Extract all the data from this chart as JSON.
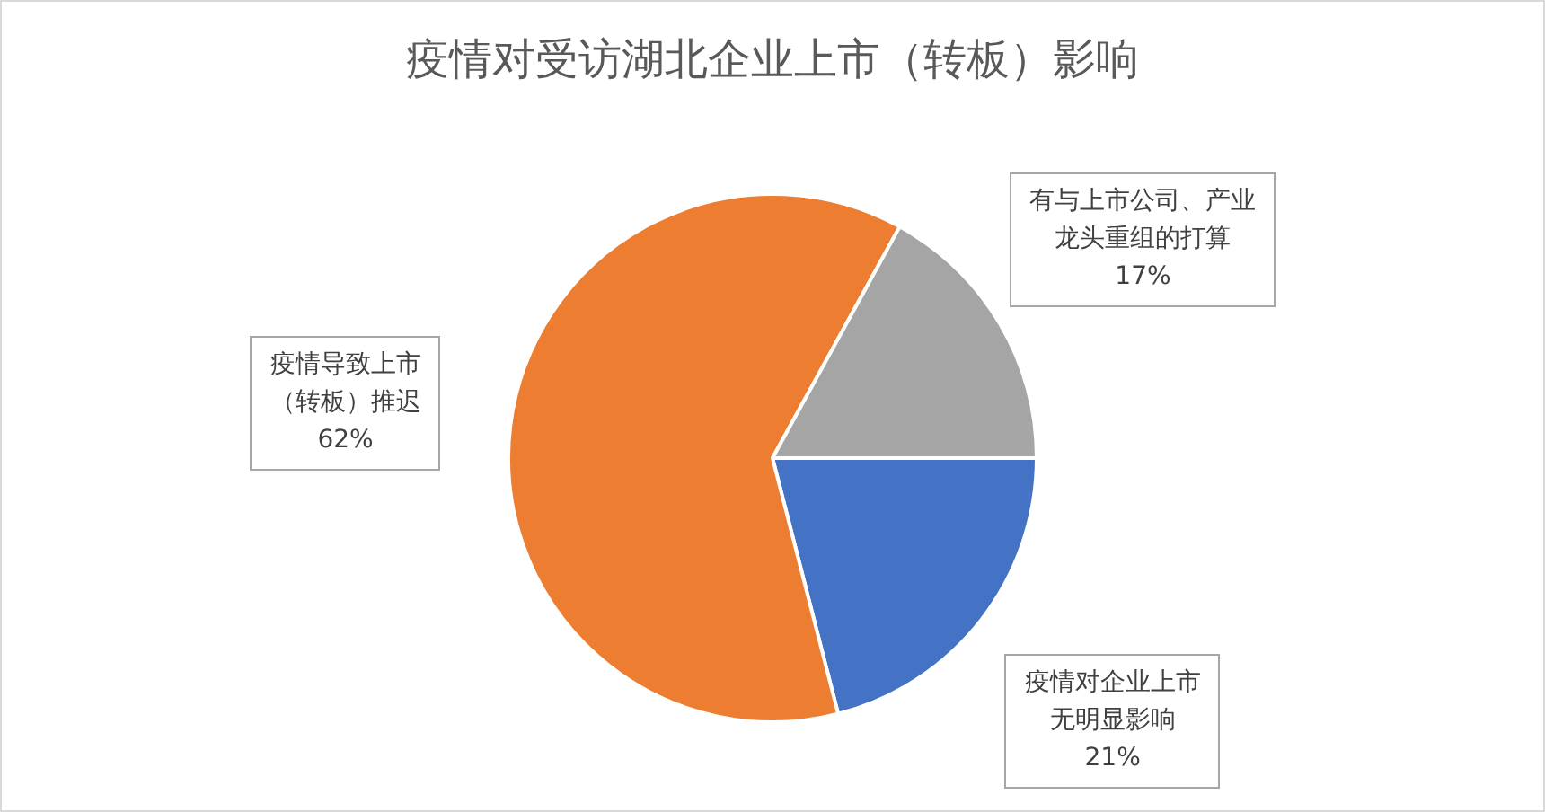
{
  "chart_data": {
    "type": "pie",
    "title": "疫情对受访湖北企业上市（转板）影响",
    "categories": [
      "疫情对企业上市无明显影响",
      "疫情导致上市（转板）推迟",
      "有与上市公司、产业龙头重组的打算"
    ],
    "values": [
      21,
      62,
      17
    ],
    "colors": [
      "#4472c4",
      "#ed7d31",
      "#a5a5a5"
    ],
    "value_labels": [
      "21%",
      "62%",
      "17%"
    ],
    "legend": false
  }
}
